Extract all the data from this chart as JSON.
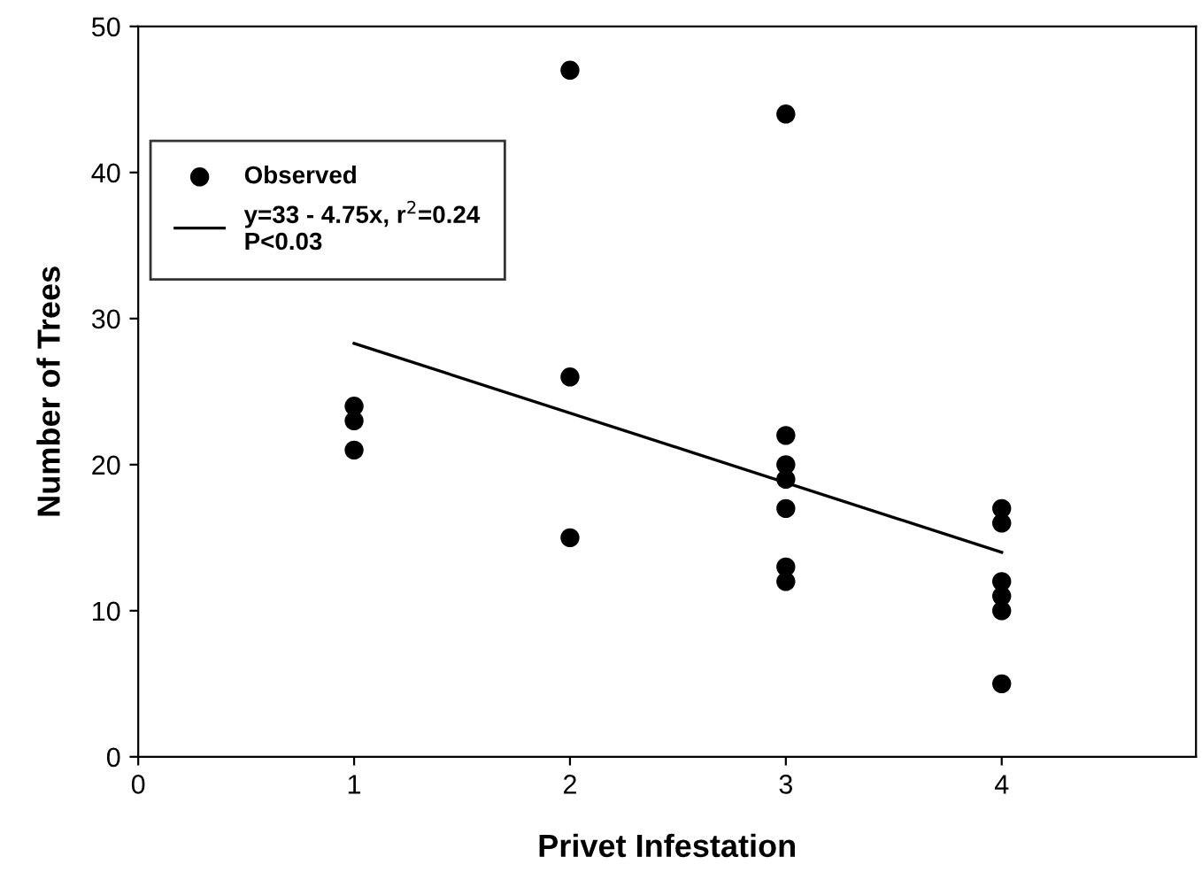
{
  "chart_data": {
    "type": "scatter",
    "xlabel": "Privet Infestation",
    "ylabel": "Number of Trees",
    "xlim": [
      0,
      4.9
    ],
    "xticks": [
      0,
      1,
      2,
      3,
      4
    ],
    "ylim": [
      0,
      50
    ],
    "yticks": [
      0,
      10,
      20,
      30,
      40,
      50
    ],
    "grid": false,
    "legend": "top left",
    "series": [
      {
        "name": "Observed",
        "color": "#000000",
        "marker": "circle",
        "x": [
          1,
          1,
          1,
          2,
          2,
          2,
          3,
          3,
          3,
          3,
          3,
          3,
          3,
          4,
          4,
          4,
          4,
          4,
          4
        ],
        "values": [
          24,
          23,
          21,
          47,
          26,
          15,
          44,
          22,
          20,
          19,
          17,
          13,
          12,
          17,
          16,
          12,
          11,
          10,
          5
        ]
      },
      {
        "name": "y=33 - 4.75x, r$^{2}$=0.24\nP<0.03",
        "type": "line",
        "color": "#000000",
        "marker": "none",
        "line_style": "solid",
        "x": [
          1,
          4
        ],
        "values": [
          28.3,
          14
        ]
      }
    ]
  }
}
